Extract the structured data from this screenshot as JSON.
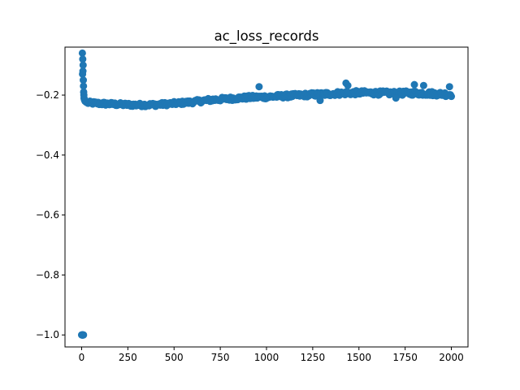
{
  "chart_data": {
    "type": "scatter",
    "title": "ac_loss_records",
    "xlabel": "",
    "ylabel": "",
    "xlim": [
      -90,
      2090
    ],
    "ylim": [
      -1.04,
      -0.04
    ],
    "xticks": [
      0,
      250,
      500,
      750,
      1000,
      1250,
      1500,
      1750,
      2000
    ],
    "xtick_labels": [
      "0",
      "250",
      "500",
      "750",
      "1000",
      "1250",
      "1500",
      "1750",
      "2000"
    ],
    "yticks": [
      -1.0,
      -0.8,
      -0.6,
      -0.4,
      -0.2
    ],
    "ytick_labels": [
      "−1.0",
      "−0.8",
      "−0.6",
      "−0.4",
      "−0.2"
    ],
    "grid": false,
    "marker_color": "#1f77b4",
    "series": [
      {
        "points": [
          [
            0,
            -1.0
          ],
          [
            1,
            -1.0
          ],
          [
            2,
            -1.0
          ],
          [
            3,
            -1.0
          ],
          [
            4,
            -1.0
          ],
          [
            5,
            -1.0
          ],
          [
            6,
            -1.0
          ],
          [
            7,
            -1.0
          ],
          [
            8,
            -1.0
          ],
          [
            9,
            -1.0
          ],
          [
            10,
            -1.0
          ],
          [
            4,
            -0.06
          ],
          [
            6,
            -0.08
          ],
          [
            8,
            -0.1
          ],
          [
            5,
            -0.13
          ],
          [
            7,
            -0.12
          ],
          [
            9,
            -0.15
          ],
          [
            10,
            -0.17
          ],
          [
            11,
            -0.19
          ],
          [
            12,
            -0.2
          ],
          [
            13,
            -0.21
          ],
          [
            15,
            -0.215
          ],
          [
            18,
            -0.22
          ],
          [
            22,
            -0.222
          ],
          [
            26,
            -0.224
          ],
          [
            30,
            -0.225
          ]
        ],
        "trend": [
          [
            30,
            -0.225
          ],
          [
            100,
            -0.228
          ],
          [
            200,
            -0.231
          ],
          [
            300,
            -0.233
          ],
          [
            400,
            -0.232
          ],
          [
            500,
            -0.228
          ],
          [
            600,
            -0.223
          ],
          [
            700,
            -0.216
          ],
          [
            800,
            -0.212
          ],
          [
            900,
            -0.208
          ],
          [
            1000,
            -0.206
          ],
          [
            1100,
            -0.203
          ],
          [
            1200,
            -0.2
          ],
          [
            1300,
            -0.197
          ],
          [
            1400,
            -0.194
          ],
          [
            1500,
            -0.192
          ],
          [
            1600,
            -0.193
          ],
          [
            1700,
            -0.194
          ],
          [
            1800,
            -0.193
          ],
          [
            1900,
            -0.195
          ],
          [
            2000,
            -0.198
          ]
        ],
        "noise": [
          0.0055,
          0.0055,
          0.0065,
          0.0075
        ],
        "sample_step": 5,
        "outliers": [
          [
            960,
            -0.172
          ],
          [
            1290,
            -0.218
          ],
          [
            1430,
            -0.16
          ],
          [
            1440,
            -0.168
          ],
          [
            1700,
            -0.21
          ],
          [
            1800,
            -0.165
          ],
          [
            1850,
            -0.168
          ],
          [
            1990,
            -0.172
          ]
        ]
      }
    ]
  }
}
